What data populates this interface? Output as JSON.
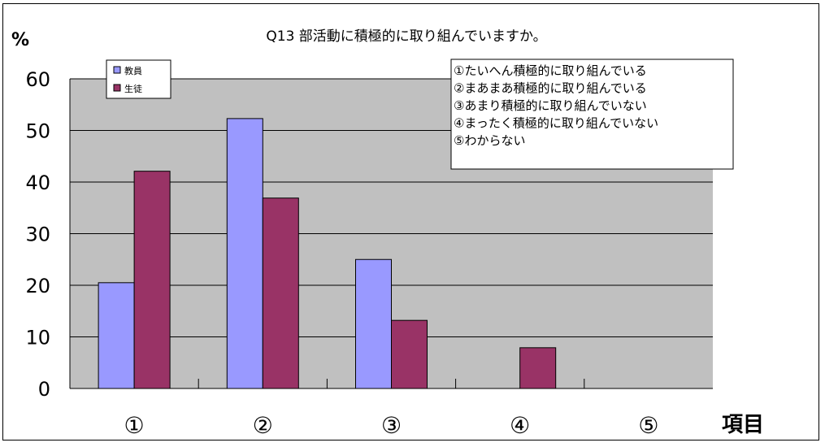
{
  "chart_data": {
    "type": "bar",
    "title": "Q13 部活動に積極的に取り組んでいますか。",
    "ylabel": "%",
    "xlabel": "項目",
    "ylim": [
      0,
      60
    ],
    "yticks": [
      0,
      10,
      20,
      30,
      40,
      50,
      60
    ],
    "categories": [
      "①",
      "②",
      "③",
      "④",
      "⑤"
    ],
    "series": [
      {
        "name": "教員",
        "color": "#9999ff",
        "values": [
          20.5,
          52.3,
          25.0,
          0,
          0
        ]
      },
      {
        "name": "生徒",
        "color": "#993366",
        "values": [
          42.1,
          36.9,
          13.2,
          7.9,
          0
        ]
      }
    ],
    "plot_background": "#c0c0c0",
    "grid": true,
    "legend_position": "top-left",
    "notes": [
      "①たいへん積極的に取り組んでいる",
      "②まあまあ積極的に取り組んでいる",
      "③あまり積極的に取り組んでいない",
      "④まったく積極的に取り組んでいない",
      "⑤わからない"
    ]
  }
}
